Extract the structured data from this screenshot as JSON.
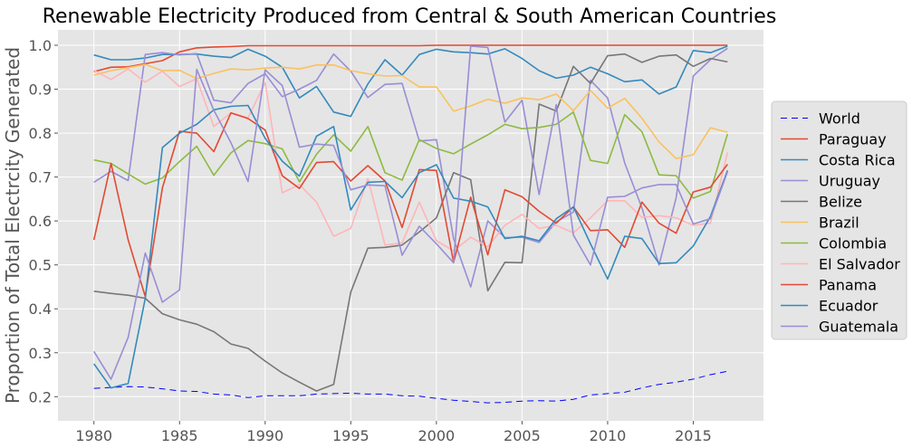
{
  "chart_data": {
    "type": "line",
    "title": "Renewable Electricity Produced from Central & South American Countries",
    "xlabel": "",
    "ylabel": "Proportion of Total Electrcity Generated",
    "xlim": [
      1977.9,
      2019.1
    ],
    "ylim": [
      0.145,
      1.035
    ],
    "x_ticks": [
      1980,
      1985,
      1990,
      1995,
      2000,
      2005,
      2010,
      2015
    ],
    "y_ticks": [
      0.2,
      0.3,
      0.4,
      0.5,
      0.6,
      0.7,
      0.8,
      0.9,
      1.0
    ],
    "y_tick_labels": [
      "0.2",
      "0.3",
      "0.4",
      "0.5",
      "0.6",
      "0.7",
      "0.8",
      "0.9",
      "1.0"
    ],
    "grid": true,
    "legend_position": "center-right",
    "x": [
      1980,
      1981,
      1982,
      1983,
      1984,
      1985,
      1986,
      1987,
      1988,
      1989,
      1990,
      1991,
      1992,
      1993,
      1994,
      1995,
      1996,
      1997,
      1998,
      1999,
      2000,
      2001,
      2002,
      2003,
      2004,
      2005,
      2006,
      2007,
      2008,
      2009,
      2010,
      2011,
      2012,
      2013,
      2014,
      2015,
      2016,
      2017
    ],
    "series": [
      {
        "name": "World",
        "color": "#0000ff",
        "dash": true,
        "values": [
          0.219,
          0.221,
          0.223,
          0.222,
          0.218,
          0.213,
          0.212,
          0.206,
          0.204,
          0.198,
          0.202,
          0.202,
          0.202,
          0.206,
          0.207,
          0.208,
          0.206,
          0.206,
          0.202,
          0.201,
          0.196,
          0.192,
          0.189,
          0.186,
          0.187,
          0.19,
          0.191,
          0.19,
          0.194,
          0.204,
          0.207,
          0.21,
          0.22,
          0.228,
          0.233,
          0.24,
          0.25,
          0.258
        ]
      },
      {
        "name": "Paraguay",
        "color": "#e24a33",
        "values": [
          0.94,
          0.95,
          0.951,
          0.958,
          0.965,
          0.985,
          0.994,
          0.996,
          0.997,
          0.999,
          0.999,
          0.999,
          0.999,
          0.999,
          0.999,
          0.999,
          0.999,
          0.999,
          0.999,
          0.999,
          1.0,
          1.0,
          1.0,
          1.0,
          1.0,
          1.0,
          1.0,
          1.0,
          1.0,
          1.0,
          1.0,
          1.0,
          1.0,
          1.0,
          1.0,
          1.0,
          1.0,
          1.0
        ]
      },
      {
        "name": "Costa Rica",
        "color": "#348abd",
        "values": [
          0.978,
          0.967,
          0.967,
          0.971,
          0.979,
          0.979,
          0.98,
          0.975,
          0.972,
          0.991,
          0.975,
          0.95,
          0.88,
          0.906,
          0.848,
          0.838,
          0.912,
          0.967,
          0.932,
          0.979,
          0.991,
          0.985,
          0.983,
          0.98,
          0.992,
          0.97,
          0.942,
          0.925,
          0.932,
          0.95,
          0.935,
          0.917,
          0.921,
          0.889,
          0.905,
          0.988,
          0.983,
          0.998
        ]
      },
      {
        "name": "Uruguay",
        "color": "#988ed5",
        "values": [
          0.688,
          0.713,
          0.692,
          0.979,
          0.983,
          0.978,
          0.981,
          0.875,
          0.869,
          0.913,
          0.935,
          0.883,
          0.9,
          0.92,
          0.98,
          0.941,
          0.881,
          0.911,
          0.913,
          0.782,
          0.785,
          0.56,
          0.45,
          0.6,
          0.562,
          0.563,
          0.551,
          0.598,
          0.62,
          0.92,
          0.88,
          0.732,
          0.63,
          0.5,
          0.653,
          0.93,
          0.967,
          0.993
        ]
      },
      {
        "name": "Belize",
        "color": "#777777",
        "values": [
          0.44,
          0.435,
          0.431,
          0.424,
          0.389,
          0.375,
          0.365,
          0.348,
          0.32,
          0.31,
          0.281,
          0.254,
          0.233,
          0.213,
          0.228,
          0.438,
          0.538,
          0.54,
          0.545,
          0.575,
          0.607,
          0.71,
          0.694,
          0.441,
          0.506,
          0.505,
          0.866,
          0.85,
          0.952,
          0.913,
          0.976,
          0.98,
          0.961,
          0.975,
          0.978,
          0.952,
          0.97,
          0.962
        ]
      },
      {
        "name": "Brazil",
        "color": "#fbc15e",
        "values": [
          0.932,
          0.942,
          0.949,
          0.956,
          0.942,
          0.943,
          0.924,
          0.936,
          0.946,
          0.944,
          0.948,
          0.95,
          0.946,
          0.955,
          0.955,
          0.942,
          0.935,
          0.93,
          0.931,
          0.905,
          0.905,
          0.85,
          0.862,
          0.877,
          0.868,
          0.88,
          0.876,
          0.889,
          0.851,
          0.897,
          0.857,
          0.879,
          0.834,
          0.78,
          0.742,
          0.751,
          0.812,
          0.802
        ]
      },
      {
        "name": "Colombia",
        "color": "#8eba42",
        "values": [
          0.739,
          0.731,
          0.707,
          0.684,
          0.698,
          0.735,
          0.77,
          0.704,
          0.755,
          0.783,
          0.776,
          0.764,
          0.689,
          0.752,
          0.796,
          0.759,
          0.815,
          0.71,
          0.693,
          0.785,
          0.765,
          0.753,
          0.775,
          0.796,
          0.82,
          0.81,
          0.813,
          0.82,
          0.848,
          0.738,
          0.731,
          0.842,
          0.803,
          0.705,
          0.703,
          0.652,
          0.667,
          0.798
        ]
      },
      {
        "name": "El Salvador",
        "color": "#ffb5b8",
        "values": [
          0.943,
          0.922,
          0.946,
          0.916,
          0.941,
          0.906,
          0.924,
          0.815,
          0.846,
          0.835,
          0.915,
          0.664,
          0.683,
          0.643,
          0.565,
          0.583,
          0.697,
          0.545,
          0.55,
          0.643,
          0.555,
          0.532,
          0.563,
          0.541,
          0.59,
          0.615,
          0.583,
          0.59,
          0.573,
          0.607,
          0.646,
          0.646,
          0.608,
          0.612,
          0.607,
          0.59,
          0.595,
          0.756
        ]
      },
      {
        "name": "Panama",
        "color": "#e24a33",
        "values": [
          0.557,
          0.731,
          0.557,
          0.428,
          0.675,
          0.804,
          0.8,
          0.758,
          0.846,
          0.833,
          0.807,
          0.703,
          0.674,
          0.733,
          0.735,
          0.691,
          0.726,
          0.691,
          0.585,
          0.717,
          0.715,
          0.506,
          0.654,
          0.523,
          0.671,
          0.655,
          0.622,
          0.595,
          0.632,
          0.578,
          0.58,
          0.54,
          0.643,
          0.595,
          0.572,
          0.666,
          0.677,
          0.729
        ]
      },
      {
        "name": "Ecuador",
        "color": "#348abd",
        "values": [
          0.275,
          0.22,
          0.23,
          0.424,
          0.767,
          0.8,
          0.82,
          0.853,
          0.861,
          0.863,
          0.788,
          0.736,
          0.702,
          0.793,
          0.815,
          0.625,
          0.688,
          0.69,
          0.653,
          0.71,
          0.728,
          0.652,
          0.645,
          0.632,
          0.56,
          0.565,
          0.555,
          0.605,
          0.632,
          0.548,
          0.468,
          0.565,
          0.56,
          0.503,
          0.505,
          0.543,
          0.61,
          0.715
        ]
      },
      {
        "name": "Guatemala",
        "color": "#988ed5",
        "values": [
          0.303,
          0.24,
          0.335,
          0.527,
          0.415,
          0.443,
          0.945,
          0.852,
          0.778,
          0.69,
          0.944,
          0.908,
          0.768,
          0.775,
          0.772,
          0.671,
          0.682,
          0.68,
          0.522,
          0.588,
          0.548,
          0.505,
          0.998,
          0.995,
          0.825,
          0.875,
          0.66,
          0.865,
          0.568,
          0.5,
          0.654,
          0.656,
          0.675,
          0.683,
          0.683,
          0.593,
          0.605,
          0.712
        ]
      }
    ]
  }
}
